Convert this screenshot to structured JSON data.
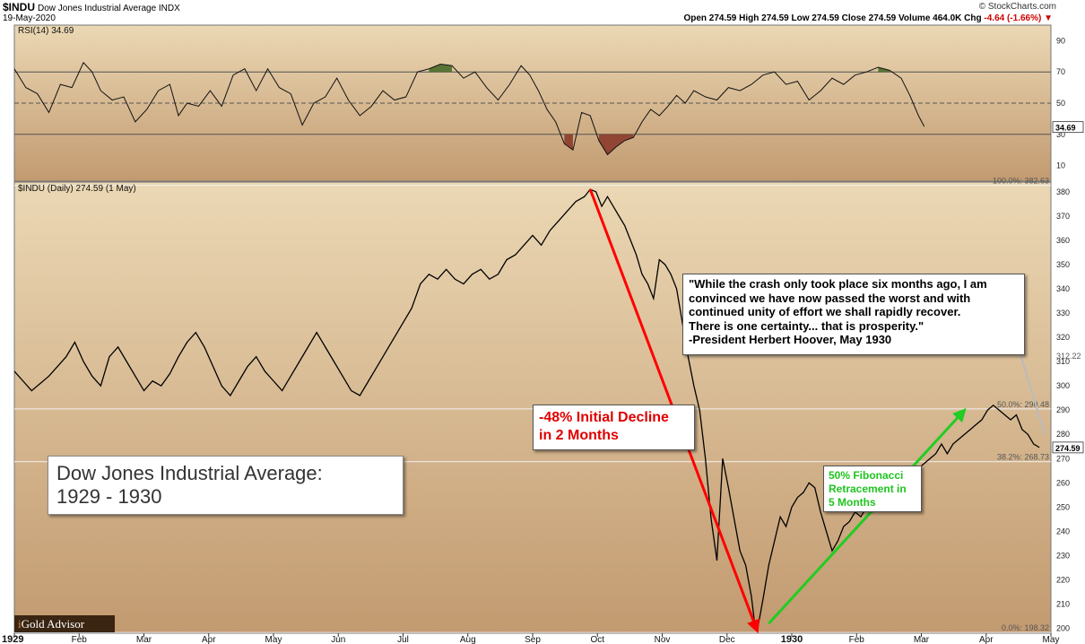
{
  "header": {
    "symbol": "$INDU",
    "name": "Dow Jones Industrial Average INDX",
    "date": "19-May-2020",
    "brand": "© StockCharts.com",
    "quote": "Open 274.59  High 274.59  Low 274.59  Close 274.59  Volume 464.0K  Chg",
    "change": "-4.64 (-1.66%) ▼"
  },
  "colors": {
    "panel_top": "#ebd8b4",
    "panel_bottom": "#c29a70",
    "price_line": "#000000",
    "decline_arrow": "#ff0000",
    "recovery_arrow": "#22cc22",
    "rsi_overbought_fill": "#4a6b2a",
    "rsi_oversold_fill": "#8b3b2b"
  },
  "callouts": {
    "quote_lines": [
      "\"While the crash only took place six months ago, I am",
      "convinced we have now passed the worst and with",
      "continued unity of effort we shall rapidly recover.",
      "There is one certainty... that is prosperity.\"",
      "-President Herbert Hoover, May 1930"
    ],
    "decline_lines": [
      "-48% Initial Decline",
      "in 2 Months"
    ],
    "fib_lines": [
      "50% Fibonacci",
      "Retracement in",
      "5 Months"
    ],
    "title_lines": [
      "Dow Jones Industrial Average:",
      "1929 - 1930"
    ]
  },
  "logo": {
    "prefix": "i",
    "text": "Gold Advisor"
  },
  "chart_data": [
    {
      "type": "line",
      "panel": "RSI",
      "label": "RSI(14) 34.69",
      "ylim": [
        0,
        100
      ],
      "ticks": [
        10,
        30,
        50,
        70,
        90
      ],
      "last_value": 34.69,
      "reference_lines": [
        30,
        50,
        70
      ],
      "points": [
        [
          0,
          72
        ],
        [
          4,
          60
        ],
        [
          8,
          56
        ],
        [
          12,
          44
        ],
        [
          16,
          62
        ],
        [
          20,
          60
        ],
        [
          24,
          76
        ],
        [
          27,
          70
        ],
        [
          30,
          58
        ],
        [
          34,
          52
        ],
        [
          38,
          54
        ],
        [
          42,
          38
        ],
        [
          46,
          46
        ],
        [
          50,
          58
        ],
        [
          54,
          62
        ],
        [
          57,
          42
        ],
        [
          60,
          50
        ],
        [
          64,
          48
        ],
        [
          68,
          58
        ],
        [
          72,
          48
        ],
        [
          76,
          68
        ],
        [
          80,
          72
        ],
        [
          84,
          58
        ],
        [
          88,
          72
        ],
        [
          92,
          60
        ],
        [
          96,
          56
        ],
        [
          100,
          36
        ],
        [
          104,
          50
        ],
        [
          108,
          54
        ],
        [
          112,
          66
        ],
        [
          116,
          52
        ],
        [
          120,
          42
        ],
        [
          124,
          48
        ],
        [
          128,
          58
        ],
        [
          132,
          52
        ],
        [
          136,
          54
        ],
        [
          140,
          70
        ],
        [
          144,
          72
        ],
        [
          148,
          75
        ],
        [
          152,
          74
        ],
        [
          156,
          66
        ],
        [
          160,
          70
        ],
        [
          164,
          60
        ],
        [
          168,
          52
        ],
        [
          172,
          62
        ],
        [
          176,
          74
        ],
        [
          179,
          68
        ],
        [
          182,
          58
        ],
        [
          185,
          46
        ],
        [
          188,
          38
        ],
        [
          191,
          24
        ],
        [
          194,
          20
        ],
        [
          197,
          44
        ],
        [
          200,
          42
        ],
        [
          203,
          26
        ],
        [
          206,
          17
        ],
        [
          209,
          22
        ],
        [
          212,
          26
        ],
        [
          215,
          28
        ],
        [
          218,
          38
        ],
        [
          221,
          46
        ],
        [
          224,
          42
        ],
        [
          227,
          48
        ],
        [
          230,
          55
        ],
        [
          233,
          50
        ],
        [
          236,
          58
        ],
        [
          240,
          54
        ],
        [
          244,
          52
        ],
        [
          248,
          60
        ],
        [
          252,
          58
        ],
        [
          256,
          62
        ],
        [
          260,
          68
        ],
        [
          264,
          70
        ],
        [
          268,
          62
        ],
        [
          272,
          64
        ],
        [
          276,
          52
        ],
        [
          280,
          58
        ],
        [
          284,
          66
        ],
        [
          288,
          62
        ],
        [
          292,
          68
        ],
        [
          296,
          70
        ],
        [
          300,
          73
        ],
        [
          304,
          71
        ],
        [
          308,
          66
        ],
        [
          311,
          55
        ],
        [
          314,
          42
        ],
        [
          316,
          35
        ]
      ]
    },
    {
      "type": "line",
      "panel": "Price",
      "label": "$INDU (Daily) 274.59 (1 May)",
      "ylim": [
        198,
        384
      ],
      "ticks": [
        200,
        210,
        220,
        230,
        240,
        250,
        260,
        270,
        280,
        290,
        300,
        310,
        320,
        330,
        340,
        350,
        360,
        370,
        380
      ],
      "last_value": 274.59,
      "x_labels": [
        "1929",
        "Feb",
        "Mar",
        "Apr",
        "May",
        "Jun",
        "Jul",
        "Aug",
        "Sep",
        "Oct",
        "Nov",
        "Dec",
        "1930",
        "Feb",
        "Mar",
        "Apr",
        "May"
      ],
      "fibonacci_levels": [
        {
          "label": "100.0%: 382.63",
          "value": 382.63
        },
        {
          "label": "50.0%: 290.48",
          "value": 290.48
        },
        {
          "label": "38.2%: 268.73",
          "value": 268.73
        },
        {
          "label": "0.0%: 198.32",
          "value": 198.32
        }
      ],
      "extra_tick": {
        "label": "312.22",
        "value": 312.22
      },
      "points": [
        [
          0,
          306
        ],
        [
          3,
          302
        ],
        [
          6,
          298
        ],
        [
          9,
          301
        ],
        [
          12,
          304
        ],
        [
          15,
          308
        ],
        [
          18,
          312
        ],
        [
          21,
          318
        ],
        [
          24,
          310
        ],
        [
          27,
          304
        ],
        [
          30,
          300
        ],
        [
          33,
          312
        ],
        [
          36,
          316
        ],
        [
          39,
          310
        ],
        [
          42,
          304
        ],
        [
          45,
          298
        ],
        [
          48,
          302
        ],
        [
          51,
          300
        ],
        [
          54,
          305
        ],
        [
          57,
          312
        ],
        [
          60,
          318
        ],
        [
          63,
          322
        ],
        [
          66,
          316
        ],
        [
          69,
          308
        ],
        [
          72,
          300
        ],
        [
          75,
          296
        ],
        [
          78,
          302
        ],
        [
          81,
          308
        ],
        [
          84,
          312
        ],
        [
          87,
          306
        ],
        [
          90,
          302
        ],
        [
          93,
          298
        ],
        [
          96,
          304
        ],
        [
          99,
          310
        ],
        [
          102,
          316
        ],
        [
          105,
          322
        ],
        [
          108,
          316
        ],
        [
          111,
          310
        ],
        [
          114,
          304
        ],
        [
          117,
          298
        ],
        [
          120,
          296
        ],
        [
          123,
          302
        ],
        [
          126,
          308
        ],
        [
          129,
          314
        ],
        [
          132,
          320
        ],
        [
          135,
          326
        ],
        [
          138,
          332
        ],
        [
          141,
          342
        ],
        [
          144,
          346
        ],
        [
          147,
          344
        ],
        [
          150,
          348
        ],
        [
          153,
          344
        ],
        [
          156,
          342
        ],
        [
          159,
          346
        ],
        [
          162,
          348
        ],
        [
          165,
          344
        ],
        [
          168,
          346
        ],
        [
          171,
          352
        ],
        [
          174,
          354
        ],
        [
          177,
          358
        ],
        [
          180,
          362
        ],
        [
          183,
          358
        ],
        [
          186,
          364
        ],
        [
          189,
          368
        ],
        [
          192,
          372
        ],
        [
          195,
          376
        ],
        [
          198,
          378
        ],
        [
          200,
          381
        ],
        [
          202,
          380
        ],
        [
          204,
          374
        ],
        [
          206,
          378
        ],
        [
          208,
          374
        ],
        [
          210,
          370
        ],
        [
          212,
          366
        ],
        [
          214,
          360
        ],
        [
          216,
          354
        ],
        [
          218,
          346
        ],
        [
          220,
          342
        ],
        [
          222,
          336
        ],
        [
          224,
          352
        ],
        [
          226,
          350
        ],
        [
          228,
          346
        ],
        [
          230,
          340
        ],
        [
          232,
          326
        ],
        [
          234,
          312
        ],
        [
          236,
          300
        ],
        [
          238,
          290
        ],
        [
          240,
          270
        ],
        [
          242,
          245
        ],
        [
          244,
          228
        ],
        [
          246,
          270
        ],
        [
          248,
          258
        ],
        [
          250,
          245
        ],
        [
          252,
          232
        ],
        [
          254,
          226
        ],
        [
          256,
          213
        ],
        [
          257,
          203
        ],
        [
          258,
          199
        ],
        [
          260,
          212
        ],
        [
          262,
          226
        ],
        [
          264,
          236
        ],
        [
          266,
          246
        ],
        [
          268,
          242
        ],
        [
          270,
          250
        ],
        [
          272,
          254
        ],
        [
          274,
          256
        ],
        [
          276,
          260
        ],
        [
          278,
          258
        ],
        [
          280,
          248
        ],
        [
          282,
          240
        ],
        [
          284,
          232
        ],
        [
          286,
          236
        ],
        [
          288,
          242
        ],
        [
          290,
          244
        ],
        [
          292,
          248
        ],
        [
          294,
          246
        ],
        [
          296,
          250
        ],
        [
          298,
          248
        ],
        [
          300,
          252
        ],
        [
          302,
          254
        ],
        [
          304,
          256
        ],
        [
          306,
          258
        ],
        [
          308,
          260
        ],
        [
          310,
          262
        ],
        [
          312,
          264
        ],
        [
          314,
          266
        ],
        [
          316,
          268
        ],
        [
          318,
          270
        ],
        [
          320,
          272
        ],
        [
          322,
          276
        ],
        [
          324,
          272
        ],
        [
          326,
          276
        ],
        [
          328,
          278
        ],
        [
          330,
          280
        ],
        [
          332,
          282
        ],
        [
          334,
          284
        ],
        [
          336,
          286
        ],
        [
          338,
          290
        ],
        [
          340,
          292
        ],
        [
          342,
          290
        ],
        [
          344,
          288
        ],
        [
          346,
          286
        ],
        [
          348,
          288
        ],
        [
          350,
          282
        ],
        [
          352,
          280
        ],
        [
          354,
          276
        ],
        [
          356,
          274.59
        ]
      ],
      "annotations": [
        {
          "name": "decline",
          "from": [
            200,
            381
          ],
          "to": [
            258,
            199
          ]
        },
        {
          "name": "recovery",
          "from": [
            262,
            202
          ],
          "to": [
            330,
            290
          ]
        }
      ]
    }
  ]
}
